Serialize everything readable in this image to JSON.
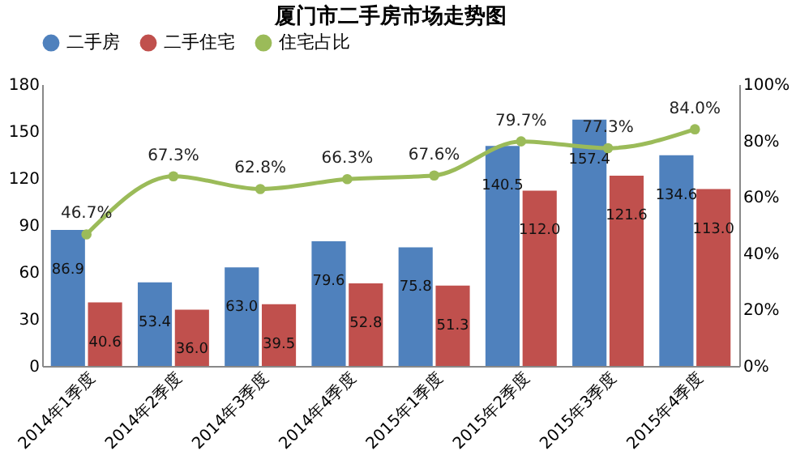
{
  "chart_data": {
    "type": "bar",
    "title": "厦门市二手房市场走势图",
    "categories": [
      "2014年1季度",
      "2014年2季度",
      "2014年3季度",
      "2014年4季度",
      "2015年1季度",
      "2015年2季度",
      "2015年3季度",
      "2015年4季度"
    ],
    "series": [
      {
        "name": "二手房",
        "color": "#4f81bd",
        "values": [
          86.9,
          53.4,
          63.0,
          79.6,
          75.8,
          140.5,
          157.4,
          134.6
        ],
        "value_labels": [
          "86.9",
          "53.4",
          "63.0",
          "79.6",
          "75.8",
          "140.5",
          "157.4",
          "134.6"
        ]
      },
      {
        "name": "二手住宅",
        "color": "#c0504d",
        "values": [
          40.6,
          36.0,
          39.5,
          52.8,
          51.3,
          112.0,
          121.6,
          113.0
        ],
        "value_labels": [
          "40.6",
          "36.0",
          "39.5",
          "52.8",
          "51.3",
          "112.0",
          "121.6",
          "113.0"
        ]
      },
      {
        "name": "住宅占比",
        "type": "line",
        "axis": "y2",
        "color": "#9bbb59",
        "values": [
          46.7,
          67.3,
          62.8,
          66.3,
          67.6,
          79.7,
          77.3,
          84.0
        ],
        "value_labels": [
          "46.7%",
          "67.3%",
          "62.8%",
          "66.3%",
          "67.6%",
          "79.7%",
          "77.3%",
          "84.0%"
        ]
      }
    ],
    "ylim": [
      0,
      180
    ],
    "yticks": [
      0,
      30,
      60,
      90,
      120,
      150,
      180
    ],
    "y2lim": [
      0,
      100
    ],
    "y2ticks": [
      {
        "value": 0,
        "label": "0%"
      },
      {
        "value": 20,
        "label": "20%"
      },
      {
        "value": 40,
        "label": "40%"
      },
      {
        "value": 60,
        "label": "60%"
      },
      {
        "value": 80,
        "label": "80%"
      },
      {
        "value": 100,
        "label": "100%"
      }
    ],
    "legend": "top",
    "marker": "circle"
  }
}
